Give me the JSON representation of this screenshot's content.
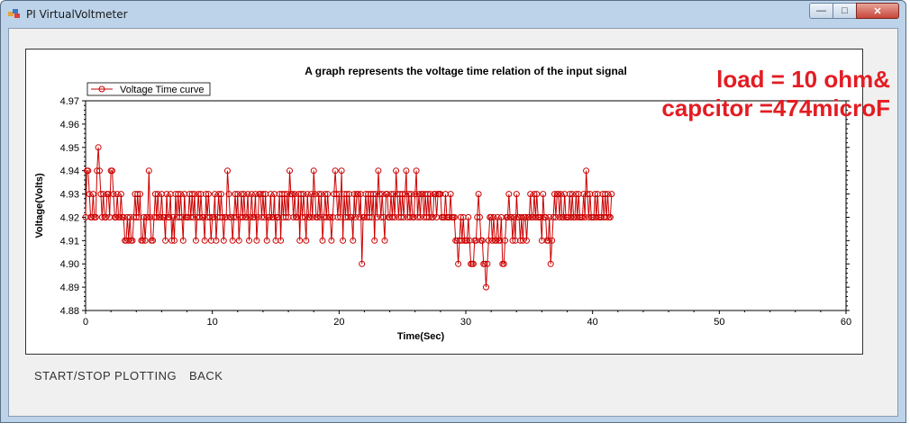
{
  "window": {
    "title": "PI VirtualVoltmeter",
    "min": "—",
    "max": "□",
    "close": "✕"
  },
  "buttons": {
    "start_stop": "START/STOP PLOTTING",
    "back": "BACK"
  },
  "annotation": {
    "line1": "load = 10 ohm&",
    "line2": "capcitor =474microF"
  },
  "colors": {
    "series": "#cc0000",
    "annotation": "#e31c23"
  },
  "chart_data": {
    "type": "line",
    "title": "A graph represents the voltage time relation of the input signal",
    "xlabel": "Time(Sec)",
    "ylabel": "Voltage(Volts)",
    "xlim": [
      0,
      60
    ],
    "ylim": [
      4.88,
      4.97
    ],
    "xticks": [
      "0",
      "10",
      "20",
      "30",
      "40",
      "50",
      "60"
    ],
    "yticks": [
      "4.88",
      "4.89",
      "4.90",
      "4.91",
      "4.92",
      "4.93",
      "4.94",
      "4.95",
      "4.96",
      "4.97"
    ],
    "legend": "top-left",
    "series": [
      {
        "name": "Voltage Time curve",
        "marker": "circle",
        "x_start": 0.0,
        "x_step": 0.1,
        "values": [
          4.92,
          4.94,
          4.94,
          4.93,
          4.92,
          4.92,
          4.93,
          4.92,
          4.92,
          4.94,
          4.95,
          4.94,
          4.93,
          4.92,
          4.93,
          4.92,
          4.92,
          4.93,
          4.93,
          4.92,
          4.94,
          4.94,
          4.93,
          4.92,
          4.92,
          4.93,
          4.92,
          4.92,
          4.93,
          4.92,
          4.92,
          4.91,
          4.91,
          4.92,
          4.91,
          4.92,
          4.91,
          4.91,
          4.92,
          4.93,
          4.92,
          4.93,
          4.92,
          4.93,
          4.91,
          4.91,
          4.92,
          4.91,
          4.92,
          4.92,
          4.94,
          4.92,
          4.91,
          4.91,
          4.92,
          4.93,
          4.92,
          4.93,
          4.92,
          4.92,
          4.93,
          4.92,
          4.92,
          4.91,
          4.93,
          4.92,
          4.92,
          4.93,
          4.91,
          4.92,
          4.91,
          4.93,
          4.92,
          4.93,
          4.92,
          4.93,
          4.92,
          4.91,
          4.93,
          4.92,
          4.92,
          4.92,
          4.93,
          4.92,
          4.93,
          4.92,
          4.93,
          4.91,
          4.92,
          4.93,
          4.92,
          4.93,
          4.92,
          4.92,
          4.91,
          4.93,
          4.92,
          4.93,
          4.92,
          4.91,
          4.92,
          4.92,
          4.93,
          4.91,
          4.92,
          4.93,
          4.92,
          4.93,
          4.92,
          4.91,
          4.92,
          4.92,
          4.94,
          4.93,
          4.92,
          4.92,
          4.91,
          4.92,
          4.93,
          4.92,
          4.93,
          4.91,
          4.92,
          4.93,
          4.92,
          4.93,
          4.92,
          4.92,
          4.93,
          4.91,
          4.92,
          4.93,
          4.92,
          4.92,
          4.93,
          4.91,
          4.92,
          4.93,
          4.93,
          4.92,
          4.93,
          4.92,
          4.93,
          4.91,
          4.92,
          4.92,
          4.93,
          4.92,
          4.92,
          4.93,
          4.91,
          4.92,
          4.92,
          4.93,
          4.91,
          4.93,
          4.92,
          4.93,
          4.92,
          4.93,
          4.92,
          4.94,
          4.93,
          4.93,
          4.92,
          4.93,
          4.92,
          4.92,
          4.93,
          4.91,
          4.93,
          4.92,
          4.93,
          4.92,
          4.91,
          4.93,
          4.92,
          4.92,
          4.93,
          4.92,
          4.94,
          4.93,
          4.92,
          4.92,
          4.93,
          4.92,
          4.93,
          4.91,
          4.92,
          4.93,
          4.92,
          4.93,
          4.92,
          4.92,
          4.91,
          4.92,
          4.93,
          4.94,
          4.93,
          4.92,
          4.93,
          4.92,
          4.94,
          4.91,
          4.93,
          4.92,
          4.93,
          4.92,
          4.93,
          4.92,
          4.92,
          4.91,
          4.93,
          4.92,
          4.93,
          4.93,
          4.92,
          4.93,
          4.9,
          4.92,
          4.92,
          4.93,
          4.92,
          4.93,
          4.92,
          4.93,
          4.92,
          4.93,
          4.91,
          4.93,
          4.92,
          4.94,
          4.93,
          4.92,
          4.93,
          4.92,
          4.91,
          4.93,
          4.93,
          4.92,
          4.92,
          4.93,
          4.92,
          4.93,
          4.92,
          4.94,
          4.93,
          4.92,
          4.93,
          4.92,
          4.93,
          4.92,
          4.93,
          4.94,
          4.92,
          4.93,
          4.92,
          4.93,
          4.92,
          4.92,
          4.93,
          4.94,
          4.92,
          4.93,
          4.92,
          4.93,
          4.93,
          4.92,
          4.93,
          4.92,
          4.93,
          4.92,
          4.93,
          4.92,
          4.92,
          4.93,
          4.93,
          4.92,
          4.93,
          4.93,
          4.93,
          4.92,
          4.92,
          4.92,
          4.93,
          4.92,
          4.92,
          4.92,
          4.93,
          4.92,
          4.92,
          4.92,
          4.91,
          4.91,
          4.9,
          4.91,
          4.92,
          4.91,
          4.92,
          4.91,
          4.91,
          4.91,
          4.92,
          4.91,
          4.9,
          4.9,
          4.9,
          4.91,
          4.91,
          4.92,
          4.93,
          4.92,
          4.91,
          4.91,
          4.9,
          4.9,
          4.89,
          4.9,
          4.91,
          4.92,
          4.92,
          4.91,
          4.92,
          4.91,
          4.91,
          4.92,
          4.91,
          4.91,
          4.92,
          4.9,
          4.9,
          4.91,
          4.92,
          4.92,
          4.93,
          4.92,
          4.92,
          4.91,
          4.92,
          4.91,
          4.93,
          4.92,
          4.92,
          4.91,
          4.92,
          4.91,
          4.92,
          4.92,
          4.91,
          4.92,
          4.92,
          4.93,
          4.92,
          4.92,
          4.93,
          4.92,
          4.93,
          4.92,
          4.92,
          4.92,
          4.91,
          4.93,
          4.92,
          4.92,
          4.91,
          4.91,
          4.92,
          4.9,
          4.91,
          4.92,
          4.93,
          4.92,
          4.93,
          4.93,
          4.92,
          4.93,
          4.92,
          4.92,
          4.93,
          4.92,
          4.92,
          4.92,
          4.93,
          4.92,
          4.93,
          4.92,
          4.92,
          4.93,
          4.92,
          4.93,
          4.92,
          4.92,
          4.92,
          4.93,
          4.92,
          4.94,
          4.93,
          4.92,
          4.93,
          4.92,
          4.92,
          4.92,
          4.93,
          4.92,
          4.93,
          4.92,
          4.92,
          4.92,
          4.93,
          4.92,
          4.93,
          4.92,
          4.93,
          4.92,
          4.92,
          4.93
        ]
      }
    ]
  }
}
